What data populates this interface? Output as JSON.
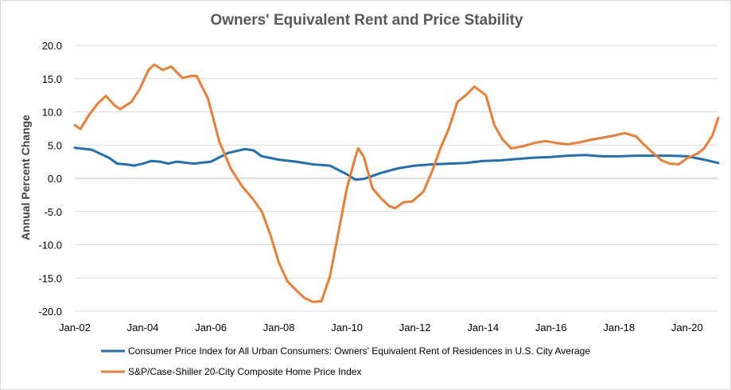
{
  "chart_data": {
    "type": "line",
    "title": "Owners' Equivalent Rent and Price Stability",
    "ylabel": "Annual Percent Change",
    "xlabel": "",
    "ylim": [
      -20,
      20
    ],
    "yticks": [
      "20.0",
      "15.0",
      "10.0",
      "5.0",
      "0.0",
      "-5.0",
      "-10.0",
      "-15.0",
      "-20.0"
    ],
    "xlim": [
      "2002-01",
      "2020-12"
    ],
    "xticks": [
      "Jan-02",
      "Jan-04",
      "Jan-06",
      "Jan-08",
      "Jan-10",
      "Jan-12",
      "Jan-14",
      "Jan-16",
      "Jan-18",
      "Jan-20"
    ],
    "grid": "horizontal",
    "legend": "bottom",
    "series": [
      {
        "name": "Consumer Price Index for All Urban Consumers: Owners' Equivalent Rent of Residences in U.S. City Average",
        "color": "#1f6fb5",
        "points": [
          [
            "2002-01",
            4.6
          ],
          [
            "2002-07",
            4.3
          ],
          [
            "2003-01",
            3.1
          ],
          [
            "2003-04",
            2.2
          ],
          [
            "2003-07",
            2.1
          ],
          [
            "2003-10",
            1.9
          ],
          [
            "2004-01",
            2.2
          ],
          [
            "2004-04",
            2.6
          ],
          [
            "2004-07",
            2.5
          ],
          [
            "2004-10",
            2.2
          ],
          [
            "2005-01",
            2.5
          ],
          [
            "2005-07",
            2.2
          ],
          [
            "2006-01",
            2.5
          ],
          [
            "2006-07",
            3.8
          ],
          [
            "2007-01",
            4.4
          ],
          [
            "2007-04",
            4.2
          ],
          [
            "2007-07",
            3.3
          ],
          [
            "2008-01",
            2.8
          ],
          [
            "2008-07",
            2.5
          ],
          [
            "2009-01",
            2.1
          ],
          [
            "2009-07",
            1.9
          ],
          [
            "2010-01",
            0.6
          ],
          [
            "2010-04",
            -0.2
          ],
          [
            "2010-07",
            -0.1
          ],
          [
            "2011-01",
            0.8
          ],
          [
            "2011-07",
            1.5
          ],
          [
            "2012-01",
            1.9
          ],
          [
            "2012-07",
            2.1
          ],
          [
            "2013-01",
            2.2
          ],
          [
            "2013-07",
            2.3
          ],
          [
            "2014-01",
            2.6
          ],
          [
            "2014-07",
            2.7
          ],
          [
            "2015-01",
            2.9
          ],
          [
            "2015-07",
            3.1
          ],
          [
            "2016-01",
            3.2
          ],
          [
            "2016-07",
            3.4
          ],
          [
            "2017-01",
            3.5
          ],
          [
            "2017-07",
            3.3
          ],
          [
            "2018-01",
            3.3
          ],
          [
            "2018-07",
            3.4
          ],
          [
            "2019-01",
            3.4
          ],
          [
            "2019-07",
            3.4
          ],
          [
            "2020-01",
            3.3
          ],
          [
            "2020-07",
            2.8
          ],
          [
            "2020-12",
            2.3
          ]
        ]
      },
      {
        "name": "S&P/Case-Shiller 20-City Composite Home Price Index",
        "color": "#ed7d31",
        "points": [
          [
            "2002-01",
            8.0
          ],
          [
            "2002-03",
            7.4
          ],
          [
            "2002-06",
            9.5
          ],
          [
            "2002-09",
            11.2
          ],
          [
            "2002-12",
            12.4
          ],
          [
            "2003-03",
            11.0
          ],
          [
            "2003-05",
            10.4
          ],
          [
            "2003-09",
            11.5
          ],
          [
            "2003-12",
            13.5
          ],
          [
            "2004-03",
            16.3
          ],
          [
            "2004-05",
            17.1
          ],
          [
            "2004-08",
            16.3
          ],
          [
            "2004-11",
            16.8
          ],
          [
            "2005-03",
            15.1
          ],
          [
            "2005-06",
            15.4
          ],
          [
            "2005-08",
            15.4
          ],
          [
            "2005-12",
            12.0
          ],
          [
            "2006-04",
            5.5
          ],
          [
            "2006-08",
            1.5
          ],
          [
            "2006-12",
            -1.2
          ],
          [
            "2007-04",
            -3.2
          ],
          [
            "2007-07",
            -5.0
          ],
          [
            "2007-10",
            -8.5
          ],
          [
            "2008-01",
            -12.7
          ],
          [
            "2008-04",
            -15.5
          ],
          [
            "2008-07",
            -16.8
          ],
          [
            "2008-10",
            -18.0
          ],
          [
            "2009-01",
            -18.6
          ],
          [
            "2009-04",
            -18.5
          ],
          [
            "2009-07",
            -14.8
          ],
          [
            "2009-10",
            -8.2
          ],
          [
            "2010-01",
            -1.5
          ],
          [
            "2010-04",
            3.2
          ],
          [
            "2010-05",
            4.5
          ],
          [
            "2010-07",
            3.2
          ],
          [
            "2010-10",
            -1.5
          ],
          [
            "2011-01",
            -3.0
          ],
          [
            "2011-04",
            -4.2
          ],
          [
            "2011-06",
            -4.5
          ],
          [
            "2011-09",
            -3.6
          ],
          [
            "2011-12",
            -3.5
          ],
          [
            "2012-04",
            -2.0
          ],
          [
            "2012-07",
            1.0
          ],
          [
            "2012-10",
            4.5
          ],
          [
            "2013-01",
            7.5
          ],
          [
            "2013-04",
            11.5
          ],
          [
            "2013-07",
            12.5
          ],
          [
            "2013-10",
            13.8
          ],
          [
            "2014-02",
            12.5
          ],
          [
            "2014-05",
            8.0
          ],
          [
            "2014-08",
            5.8
          ],
          [
            "2014-11",
            4.5
          ],
          [
            "2015-03",
            4.8
          ],
          [
            "2015-07",
            5.3
          ],
          [
            "2015-11",
            5.6
          ],
          [
            "2016-03",
            5.3
          ],
          [
            "2016-07",
            5.1
          ],
          [
            "2016-11",
            5.4
          ],
          [
            "2017-03",
            5.8
          ],
          [
            "2017-07",
            6.1
          ],
          [
            "2017-11",
            6.4
          ],
          [
            "2018-03",
            6.8
          ],
          [
            "2018-07",
            6.3
          ],
          [
            "2018-10",
            5.0
          ],
          [
            "2019-01",
            3.8
          ],
          [
            "2019-04",
            2.7
          ],
          [
            "2019-07",
            2.2
          ],
          [
            "2019-10",
            2.1
          ],
          [
            "2020-01",
            3.0
          ],
          [
            "2020-05",
            3.8
          ],
          [
            "2020-07",
            4.5
          ],
          [
            "2020-10",
            6.5
          ],
          [
            "2020-12",
            9.1
          ]
        ]
      }
    ]
  }
}
